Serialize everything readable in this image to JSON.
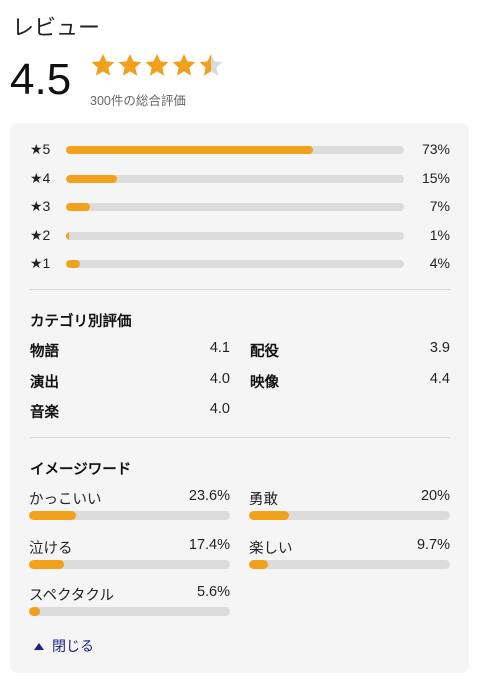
{
  "header": {
    "title": "レビュー"
  },
  "summary": {
    "score": "4.5",
    "rating": 4.5,
    "total_text": "300件の総合評価",
    "star_icon": "star-icon"
  },
  "colors": {
    "accent": "#f1a11b",
    "track": "#dcdcdc",
    "panel": "#f5f5f5",
    "link": "#1a237e",
    "star_empty": "#d9d9d9"
  },
  "distribution": [
    {
      "label": "★5",
      "pct": "73%",
      "value": 73
    },
    {
      "label": "★4",
      "pct": "15%",
      "value": 15
    },
    {
      "label": "★3",
      "pct": "7%",
      "value": 7
    },
    {
      "label": "★2",
      "pct": "1%",
      "value": 1
    },
    {
      "label": "★1",
      "pct": "4%",
      "value": 4
    }
  ],
  "categories": {
    "title": "カテゴリ別評価",
    "items": [
      {
        "name": "物語",
        "value": "4.1"
      },
      {
        "name": "配役",
        "value": "3.9"
      },
      {
        "name": "演出",
        "value": "4.0"
      },
      {
        "name": "映像",
        "value": "4.4"
      },
      {
        "name": "音楽",
        "value": "4.0"
      }
    ]
  },
  "image_words": {
    "title": "イメージワード",
    "items": [
      {
        "name": "かっこいい",
        "pct": "23.6%",
        "value": 23.6
      },
      {
        "name": "勇敢",
        "pct": "20%",
        "value": 20
      },
      {
        "name": "泣ける",
        "pct": "17.4%",
        "value": 17.4
      },
      {
        "name": "楽しい",
        "pct": "9.7%",
        "value": 9.7
      },
      {
        "name": "スペクタクル",
        "pct": "5.6%",
        "value": 5.6
      }
    ]
  },
  "footer": {
    "close_label": "閉じる",
    "close_icon": "caret-up-icon"
  }
}
